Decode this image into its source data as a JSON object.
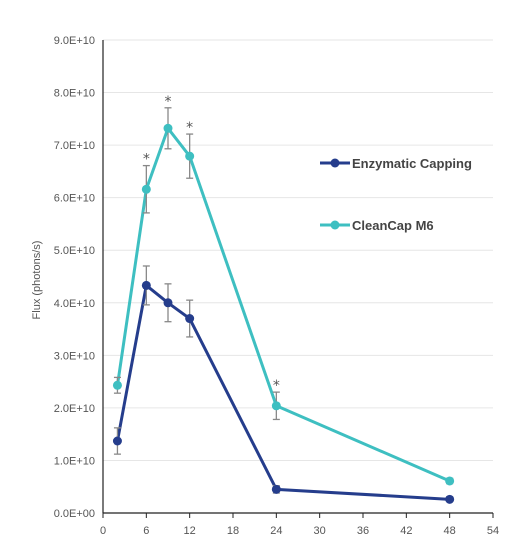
{
  "chart_data": {
    "type": "line",
    "title": "",
    "xlabel": "",
    "ylabel": "Flux (photons/s)",
    "xlim": [
      0,
      54
    ],
    "ylim": [
      0,
      90000000000
    ],
    "x_ticks": [
      "0",
      "6",
      "12",
      "18",
      "24",
      "30",
      "36",
      "42",
      "48",
      "54"
    ],
    "y_ticks": [
      "0.0E+00",
      "1.0E+10",
      "2.0E+10",
      "3.0E+10",
      "4.0E+10",
      "5.0E+10",
      "6.0E+10",
      "7.0E+10",
      "8.0E+10",
      "9.0E+10"
    ],
    "grid": "horizontal",
    "legend_position": "right",
    "series": [
      {
        "name": "Enzymatic Capping",
        "color": "#253d8c",
        "x": [
          2,
          6,
          9,
          12,
          24,
          48
        ],
        "y": [
          13700000000,
          43300000000,
          40000000000,
          37000000000,
          4500000000,
          2600000000
        ],
        "err": [
          2500000000,
          3700000000,
          3600000000,
          3500000000,
          700000000,
          300000000
        ]
      },
      {
        "name": "CleanCap M6",
        "color": "#3ebfc1",
        "x": [
          2,
          6,
          9,
          12,
          24,
          48
        ],
        "y": [
          24300000000,
          61600000000,
          73200000000,
          67900000000,
          20400000000,
          6100000000
        ],
        "err": [
          1500000000,
          4500000000,
          3900000000,
          4200000000,
          2600000000,
          500000000
        ]
      }
    ],
    "annotations": [
      {
        "text": "*",
        "x": 6
      },
      {
        "text": "*",
        "x": 9
      },
      {
        "text": "*",
        "x": 12
      },
      {
        "text": "*",
        "x": 24
      }
    ]
  }
}
